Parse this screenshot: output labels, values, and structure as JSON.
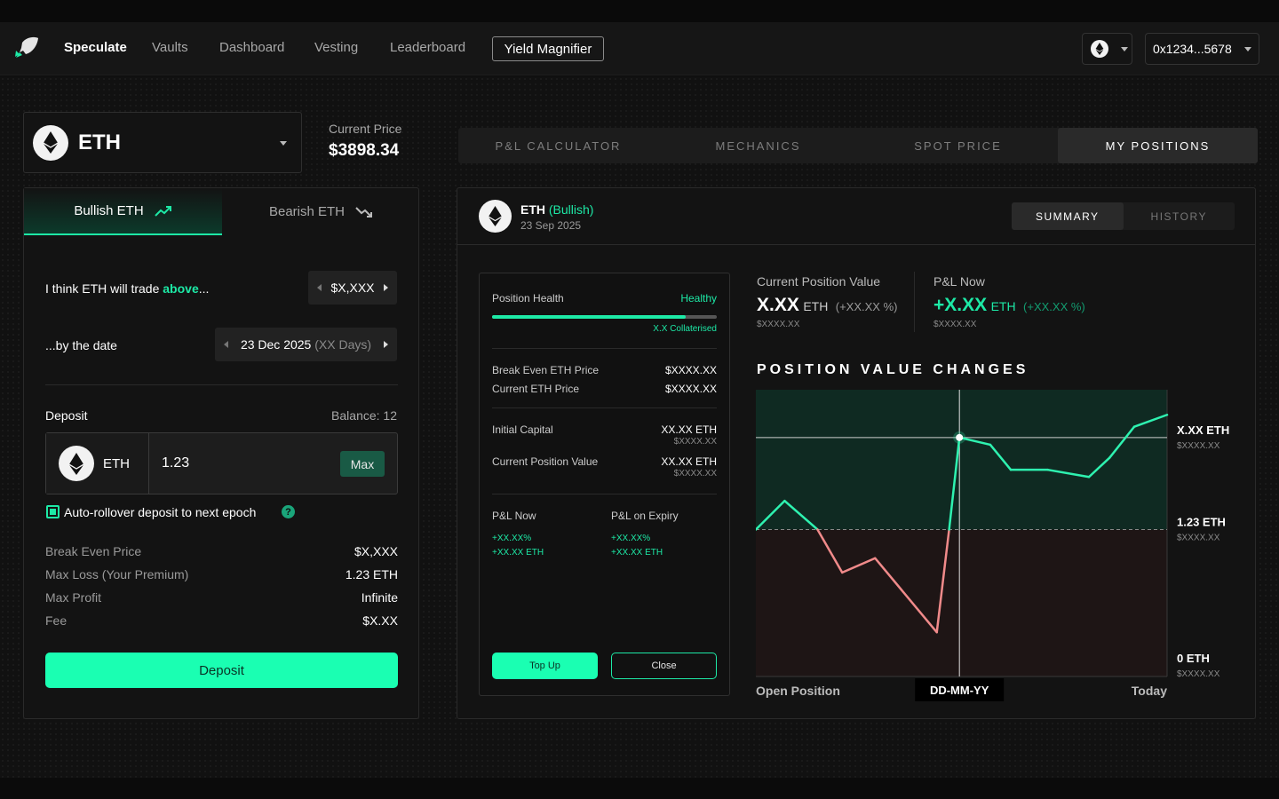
{
  "nav": {
    "items": [
      "Speculate",
      "Vaults",
      "Dashboard",
      "Vesting",
      "Leaderboard"
    ],
    "boxed_item": "Yield Magnifier",
    "wallet": "0x1234...5678"
  },
  "asset": {
    "symbol": "ETH"
  },
  "price": {
    "label": "Current Price",
    "value": "$3898.34"
  },
  "main_tabs": [
    "P&L CALCULATOR",
    "MECHANICS",
    "SPOT PRICE",
    "MY POSITIONS"
  ],
  "trade": {
    "bullish_tab": "Bullish ETH",
    "bearish_tab": "Bearish ETH",
    "think_prefix": "I think ETH will trade ",
    "think_highlight": "above",
    "think_suffix": "...",
    "price_value": "$X,XXX",
    "date_label": "...by the date",
    "date_value": "23 Dec 2025",
    "date_days": "(XX Days)",
    "deposit_label": "Deposit",
    "balance": "Balance: 12",
    "deposit_asset": "ETH",
    "deposit_amount": "1.23",
    "max_label": "Max",
    "rollover_label": "Auto-rollover deposit to next epoch",
    "help_glyph": "?",
    "stats": [
      {
        "label": "Break Even Price",
        "value": "$X,XXX"
      },
      {
        "label": "Max Loss (Your Premium)",
        "value": "1.23 ETH"
      },
      {
        "label": "Max Profit",
        "value": "Infinite"
      },
      {
        "label": "Fee",
        "value": "$X.XX"
      }
    ],
    "deposit_button": "Deposit"
  },
  "position": {
    "asset": "ETH",
    "direction": "(Bullish)",
    "date": "23 Sep 2025",
    "tabs": [
      "SUMMARY",
      "HISTORY"
    ],
    "health_label": "Position Health",
    "health_status": "Healthy",
    "health_level": 0.86,
    "collateral": "X.X Collaterised",
    "rows1": [
      {
        "label": "Break Even ETH Price",
        "value": "$XXXX.XX"
      },
      {
        "label": "Current ETH Price",
        "value": "$XXXX.XX"
      }
    ],
    "initial_capital": {
      "label": "Initial Capital",
      "value": "XX.XX ETH",
      "sub": "$XXXX.XX"
    },
    "current_value": {
      "label": "Current Position Value",
      "value": "XX.XX ETH",
      "sub": "$XXXX.XX"
    },
    "pnl_now": {
      "label": "P&L Now",
      "pct": "+XX.XX%",
      "eth": "+XX.XX ETH"
    },
    "pnl_expiry": {
      "label": "P&L on Expiry",
      "pct": "+XX.XX%",
      "eth": "+XX.XX ETH"
    },
    "top_up": "Top Up",
    "close": "Close"
  },
  "summary": {
    "cpv_label": "Current Position Value",
    "cpv_value": "X.XX",
    "cpv_unit": "ETH",
    "cpv_pct": "(+XX.XX %)",
    "cpv_usd": "$XXXX.XX",
    "pnl_label": "P&L Now",
    "pnl_value": "+X.XX",
    "pnl_unit": "ETH",
    "pnl_pct": "(+XX.XX %)",
    "pnl_usd": "$XXXX.XX"
  },
  "chart_data": {
    "type": "line",
    "title": "POSITION VALUE CHANGES",
    "x_labels": [
      "Open Position",
      "DD-MM-YY",
      "Today"
    ],
    "right_labels": [
      {
        "eth": "X.XX ETH",
        "usd": "$XXXX.XX"
      },
      {
        "eth": "1.23 ETH",
        "usd": "$XXXX.XX"
      },
      {
        "eth": "0 ETH",
        "usd": "$XXXX.XX"
      }
    ],
    "y_range": [
      0,
      2.4
    ],
    "baseline": 1.23,
    "current": 2.0,
    "marker_index": 7,
    "points": [
      {
        "x": 0,
        "y": 1.23
      },
      {
        "x": 0.07,
        "y": 1.47
      },
      {
        "x": 0.15,
        "y": 1.23
      },
      {
        "x": 0.21,
        "y": 0.87
      },
      {
        "x": 0.29,
        "y": 0.99
      },
      {
        "x": 0.44,
        "y": 0.37
      },
      {
        "x": 0.47,
        "y": 1.23
      },
      {
        "x": 0.495,
        "y": 2.0
      },
      {
        "x": 0.57,
        "y": 1.94
      },
      {
        "x": 0.62,
        "y": 1.73
      },
      {
        "x": 0.71,
        "y": 1.73
      },
      {
        "x": 0.81,
        "y": 1.67
      },
      {
        "x": 0.86,
        "y": 1.83
      },
      {
        "x": 0.92,
        "y": 2.09
      },
      {
        "x": 1.0,
        "y": 2.19
      }
    ]
  }
}
